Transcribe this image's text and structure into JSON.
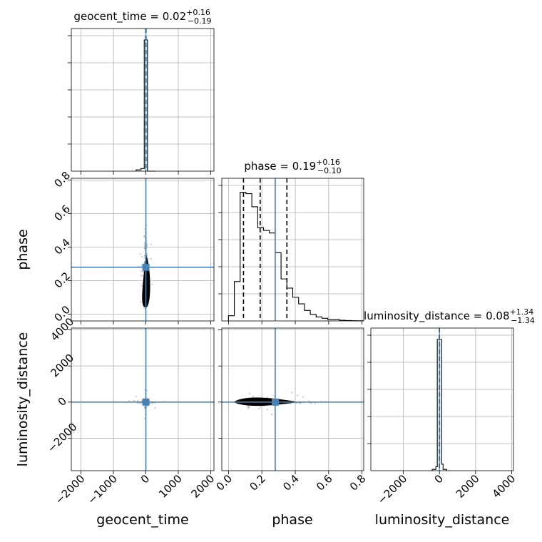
{
  "chart_data": {
    "type": "corner",
    "parameters": [
      {
        "key": "geocent_time",
        "label": "geocent_time",
        "title": "geocent_time = 0.02",
        "sup": "+0.16",
        "sub": "−0.19",
        "range": [
          -2300,
          2100
        ],
        "ticks": [
          -2000,
          -1000,
          0,
          1000,
          2000
        ],
        "tick_labels": [
          "−2000",
          "−1000",
          "0",
          "1000",
          "2000"
        ],
        "truth": 0.0,
        "quantiles": [
          -0.17,
          0.02,
          0.18
        ],
        "hist": {
          "edges": [
            -300,
            -150,
            -50,
            50,
            150,
            300
          ],
          "values": [
            0.01,
            0.02,
            1.0,
            0.0,
            0.0
          ]
        }
      },
      {
        "key": "phase",
        "label": "phase",
        "title": "phase = 0.19",
        "sup": "+0.16",
        "sub": "−0.10",
        "range": [
          -0.04,
          0.81
        ],
        "ticks": [
          0.0,
          0.2,
          0.4,
          0.6,
          0.8
        ],
        "tick_labels": [
          "0.0",
          "0.2",
          "0.4",
          "0.6",
          "0.8"
        ],
        "truth": 0.28,
        "quantiles": [
          0.09,
          0.19,
          0.35
        ],
        "hist": {
          "edges": [
            0.0,
            0.035,
            0.07,
            0.105,
            0.14,
            0.175,
            0.21,
            0.245,
            0.28,
            0.315,
            0.35,
            0.385,
            0.42,
            0.455,
            0.49,
            0.525,
            0.56,
            0.595,
            0.63,
            0.665,
            0.7,
            0.735,
            0.77,
            0.805
          ],
          "values": [
            0.04,
            0.3,
            0.98,
            0.97,
            0.87,
            0.71,
            0.69,
            0.67,
            0.52,
            0.32,
            0.25,
            0.18,
            0.13,
            0.08,
            0.05,
            0.03,
            0.02,
            0.01,
            0.01,
            0.005,
            0.003,
            0.002,
            0.001
          ]
        }
      },
      {
        "key": "luminosity_distance",
        "label": "luminosity_distance",
        "title": "luminosity_distance = 0.08",
        "sup": "+1.34",
        "sub": "−1.34",
        "range": [
          -3800,
          4100
        ],
        "ticks": [
          -2000,
          0,
          2000,
          4000
        ],
        "tick_labels": [
          "−2000",
          "0",
          "2000",
          "4000"
        ],
        "truth": 0.0,
        "quantiles": [
          -1.26,
          0.08,
          1.42
        ],
        "hist": {
          "edges": [
            -400,
            -200,
            -120,
            120,
            200,
            400
          ],
          "values": [
            0.01,
            0.03,
            1.0,
            0.05,
            0.01
          ]
        }
      }
    ],
    "y_axis_labels": {
      "phase": "phase",
      "luminosity_distance": "luminosity_distance"
    },
    "y_axes": {
      "phase": {
        "range": [
          -0.04,
          0.81
        ],
        "ticks": [
          0.0,
          0.2,
          0.4,
          0.6,
          0.8
        ],
        "tick_labels": [
          "0.0",
          "0.2",
          "0.4",
          "0.6",
          "0.8"
        ]
      },
      "luminosity_distance": {
        "range": [
          -3800,
          4100
        ],
        "ticks": [
          -2000,
          0,
          2000,
          4000
        ],
        "tick_labels": [
          "−2000",
          "0",
          "2000",
          "4000"
        ]
      }
    },
    "truth_color": "#4682b4",
    "grid": true,
    "samples_seed": 7
  }
}
